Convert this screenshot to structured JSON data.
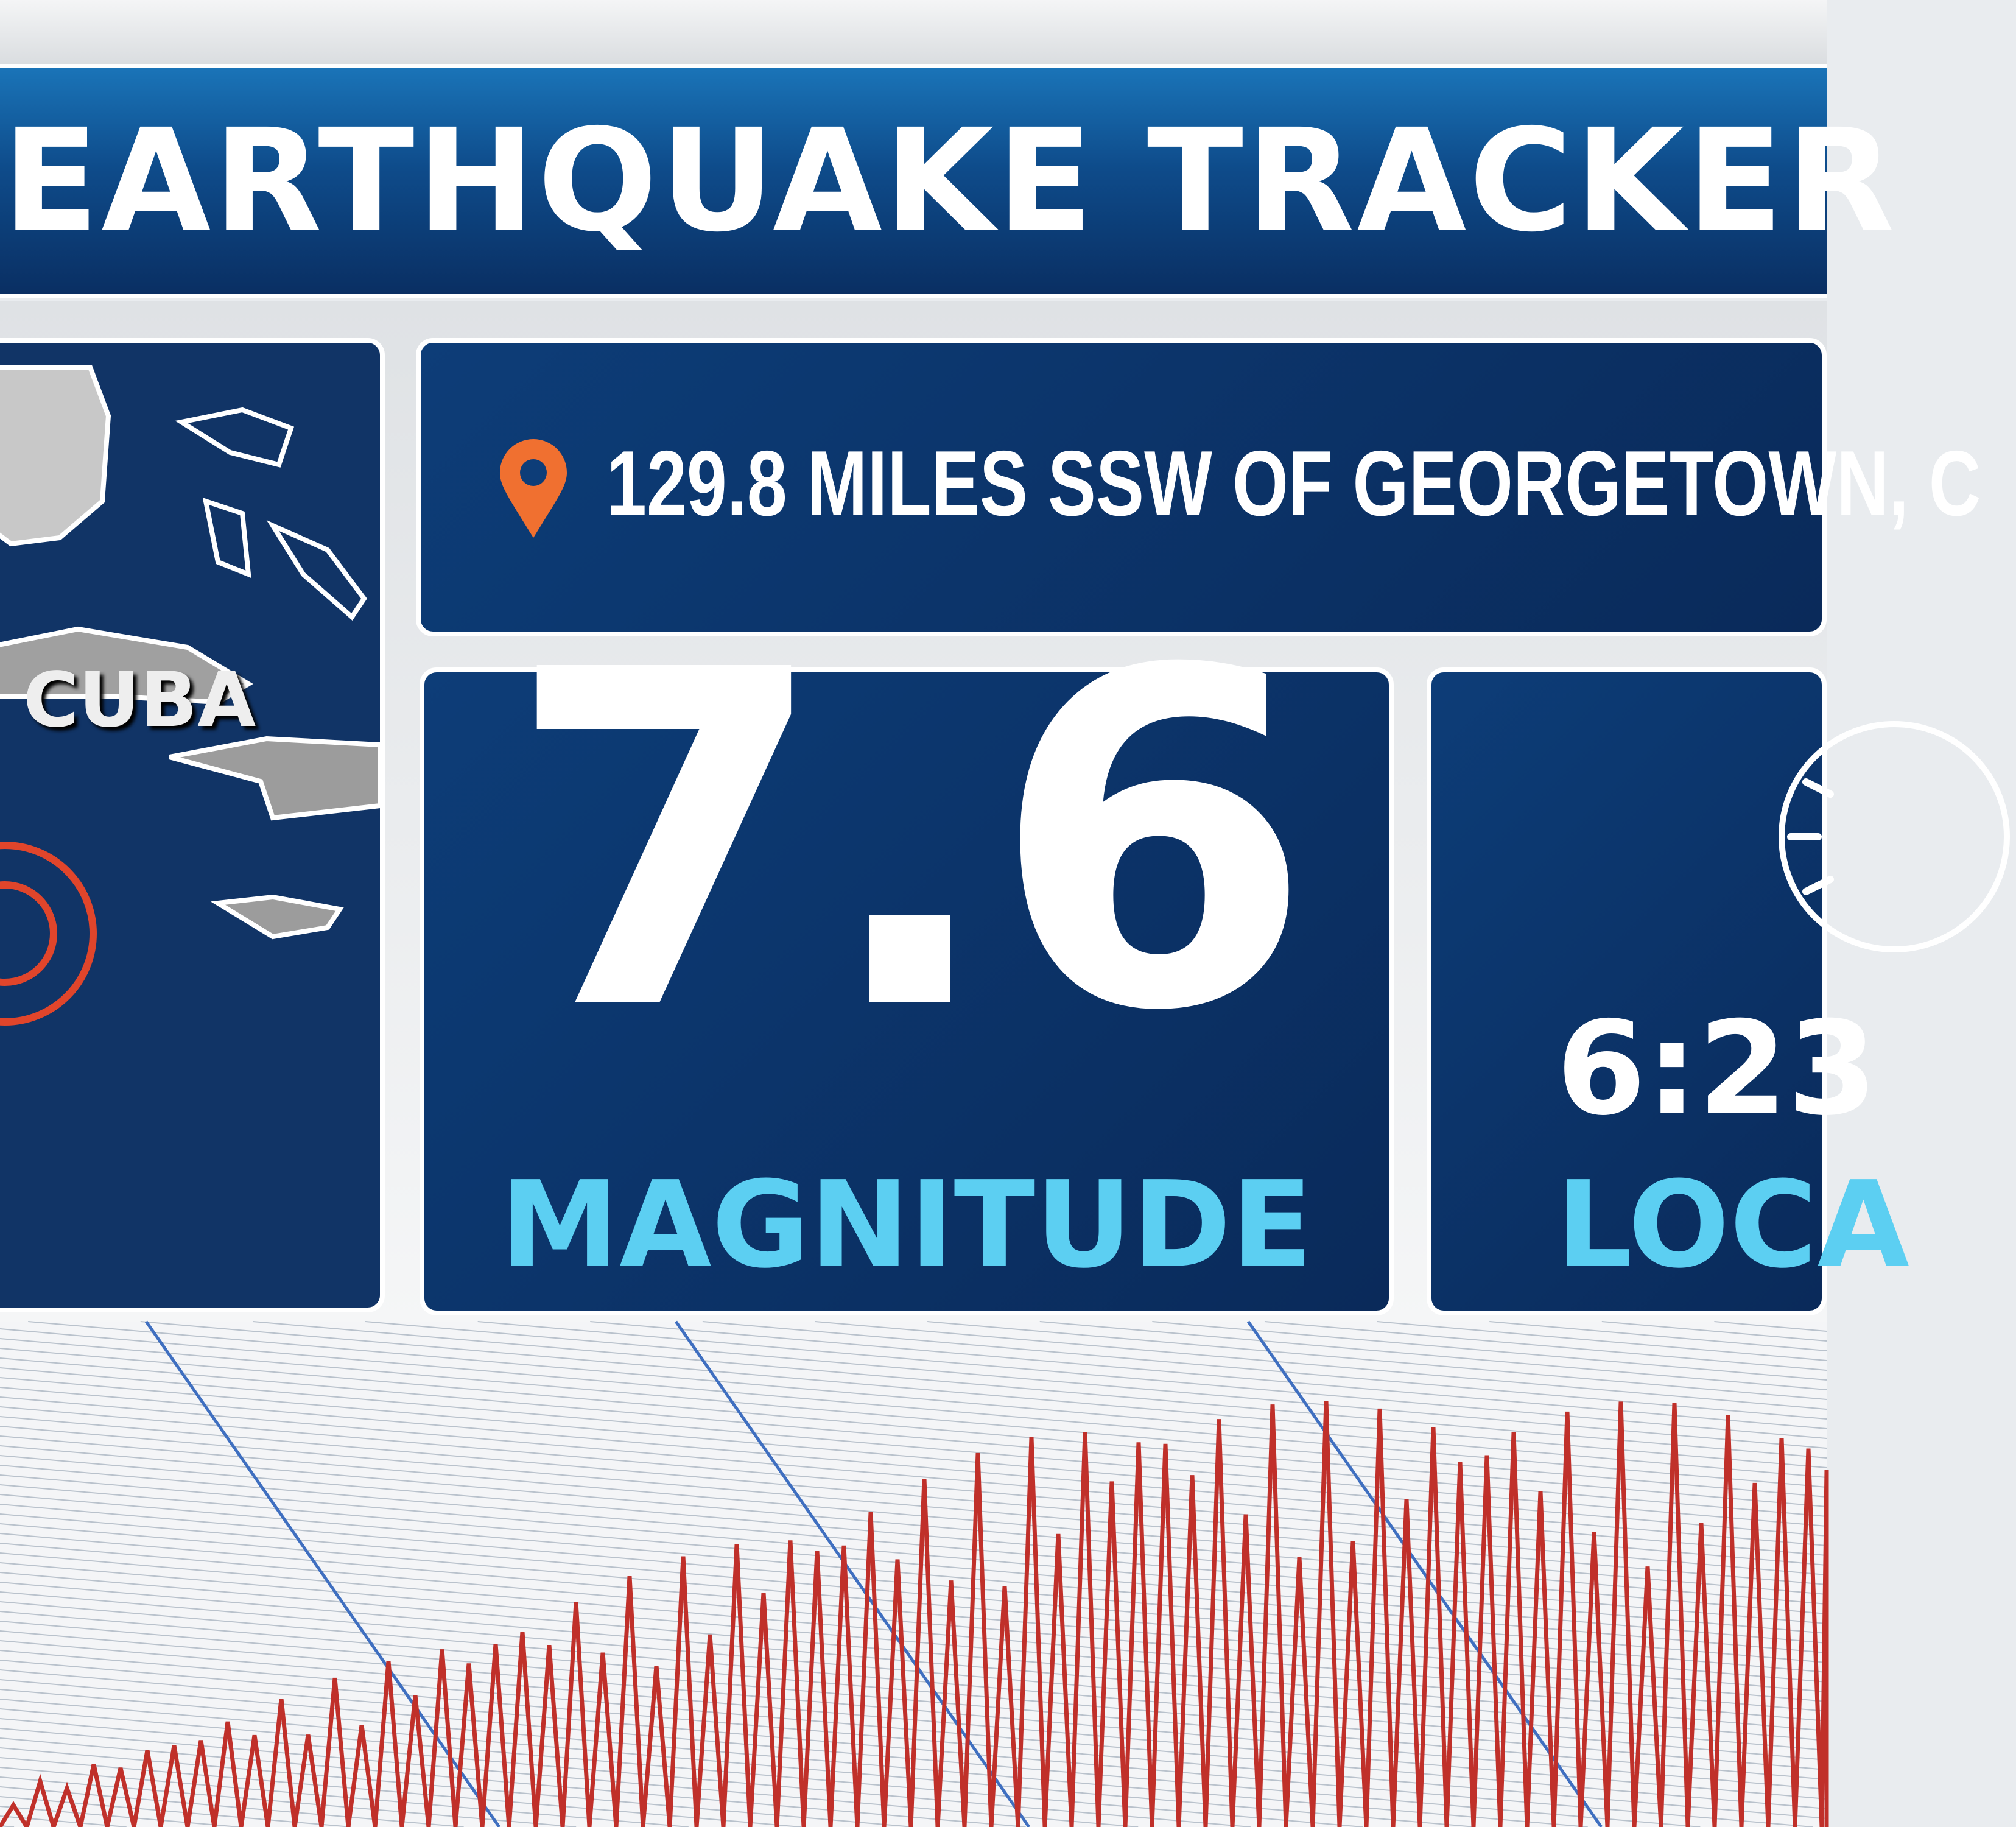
{
  "header": {
    "title": "EARTHQUAKE TRACKER"
  },
  "map": {
    "country_label": "CUBA",
    "epicenter_color": "#e0452b"
  },
  "location": {
    "icon": "map-pin-icon",
    "icon_color": "#f07030",
    "text": "129.8 MILES SSW OF GEORGETOWN, C"
  },
  "magnitude": {
    "value": "7.6",
    "label": "MAGNITUDE"
  },
  "time": {
    "icon": "clock-icon",
    "value": "6:23",
    "label": "LOCA"
  },
  "colors": {
    "panel": "#0d3d78",
    "accent": "#5ccff2",
    "trace": "#c0302a"
  }
}
